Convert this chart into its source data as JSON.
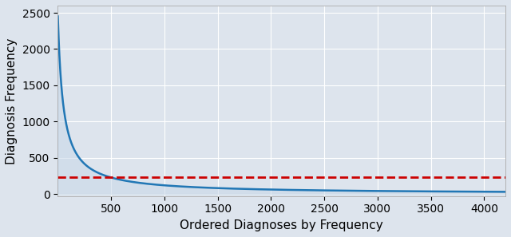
{
  "x_max": 4200,
  "x_min": 0,
  "curve_start": 1,
  "curve_scale": 2500,
  "curve_power": 1.0,
  "curve_c": 50,
  "threshold_y": 230,
  "line_color": "#2177b5",
  "fill_color": "#c8d8e8",
  "fill_alpha": 0.55,
  "threshold_color": "#cc0000",
  "threshold_linestyle": "--",
  "threshold_linewidth": 2.0,
  "line_linewidth": 1.8,
  "xlabel": "Ordered Diagnoses by Frequency",
  "ylabel": "Diagnosis Frequency",
  "xlim": [
    0,
    4200
  ],
  "ylim": [
    -30,
    2600
  ],
  "xticks": [
    500,
    1000,
    1500,
    2000,
    2500,
    3000,
    3500,
    4000
  ],
  "yticks": [
    0,
    500,
    1000,
    1500,
    2000,
    2500
  ],
  "background_color": "#dde4ed",
  "axes_bg_color": "#dde4ed",
  "grid_color": "#ffffff",
  "grid_alpha": 1.0,
  "grid_linewidth": 0.8,
  "tick_fontsize": 10,
  "label_fontsize": 11,
  "fig_bg_color": "#dde4ed"
}
